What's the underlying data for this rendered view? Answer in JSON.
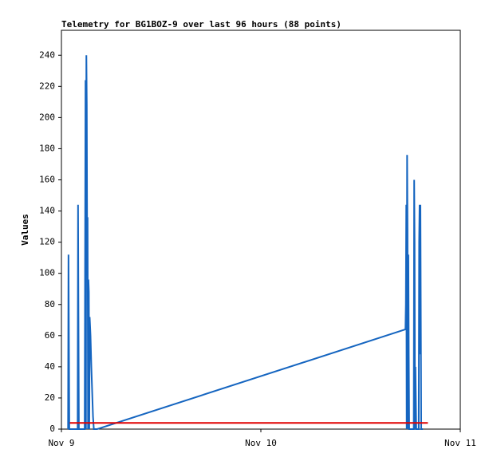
{
  "chart_data": {
    "type": "line",
    "title": "Telemetry for BG1BOZ-9 over last 96 hours (88 points)",
    "ylabel": "Values",
    "xlim": [
      0,
      48
    ],
    "xticks": [
      {
        "value": 0,
        "label": "Nov 9"
      },
      {
        "value": 24,
        "label": "Nov 10"
      },
      {
        "value": 48,
        "label": "Nov 11"
      }
    ],
    "ylim": [
      0,
      256
    ],
    "yticks": [
      0,
      20,
      40,
      60,
      80,
      100,
      120,
      140,
      160,
      180,
      200,
      220,
      240
    ],
    "series": [
      {
        "color": "#1565c0",
        "x": [
          0.8,
          0.85,
          0.9,
          0.95,
          1.95,
          2.0,
          2.05,
          2.1,
          2.8,
          2.85,
          2.9,
          2.95,
          3.0,
          3.05,
          3.1,
          3.15,
          3.2,
          3.25,
          3.3,
          3.35,
          3.4,
          3.5,
          3.6,
          3.7,
          3.8,
          3.9,
          4.3,
          41.4,
          41.45,
          41.5,
          41.55,
          41.6,
          41.65,
          41.7,
          41.75,
          41.8,
          41.85,
          42.4,
          42.45,
          42.5,
          42.55,
          42.6,
          42.7,
          43.0,
          43.05,
          43.1,
          43.15,
          43.2,
          43.25,
          43.3,
          43.5
        ],
        "values": [
          0,
          112,
          56,
          0,
          0,
          144,
          72,
          0,
          0,
          112,
          224,
          0,
          240,
          208,
          112,
          136,
          0,
          96,
          88,
          0,
          72,
          60,
          40,
          24,
          8,
          0,
          0,
          64,
          80,
          144,
          0,
          176,
          128,
          0,
          112,
          48,
          0,
          0,
          160,
          120,
          0,
          40,
          0,
          0,
          120,
          144,
          48,
          144,
          72,
          0,
          0
        ]
      },
      {
        "color": "#e00000",
        "x": [
          1.0,
          44.1
        ],
        "values": [
          4,
          4
        ]
      }
    ]
  }
}
